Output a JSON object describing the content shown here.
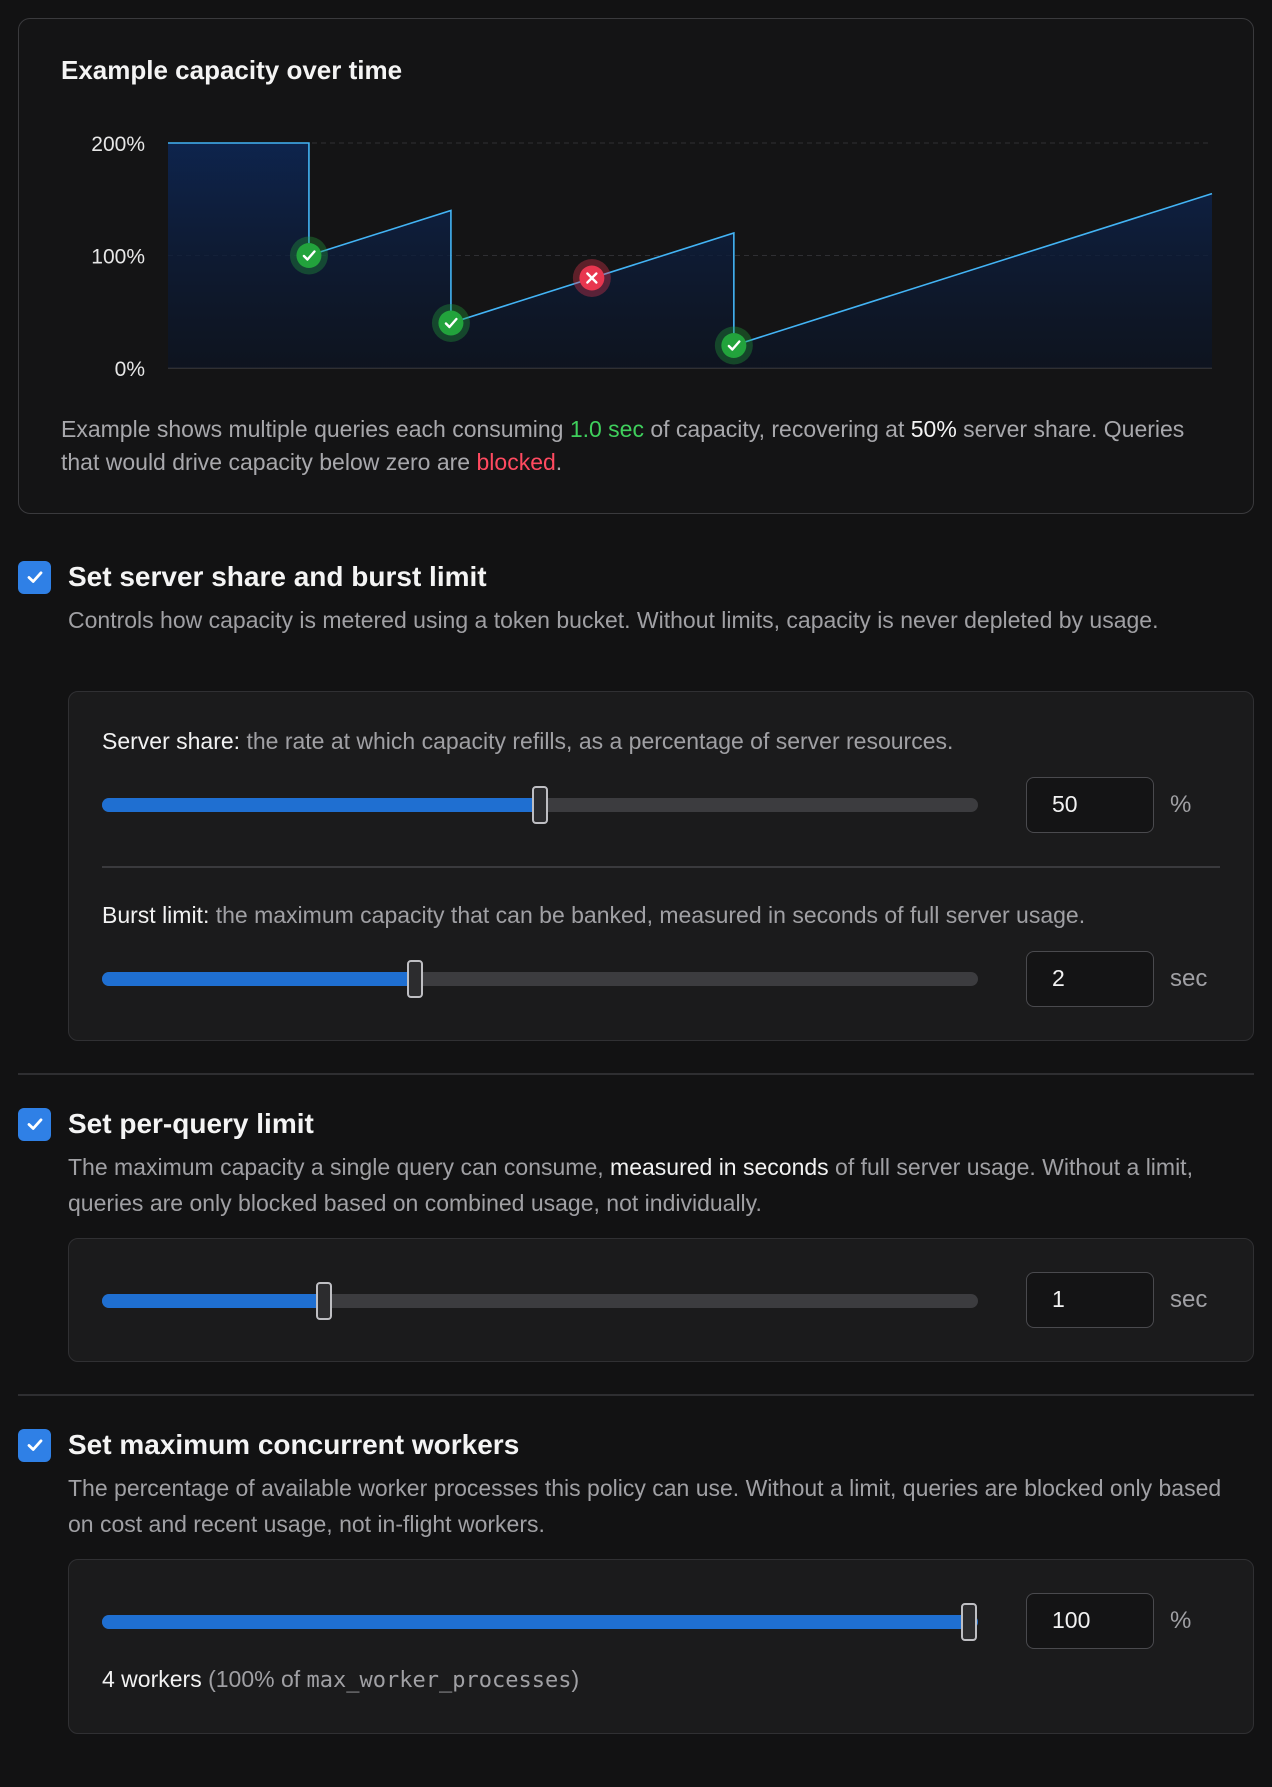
{
  "chart": {
    "title": "Example capacity over time",
    "y_ticks": [
      "200%",
      "100%",
      "0%"
    ],
    "caption": {
      "p1": "Example shows multiple queries each consuming ",
      "hl_cost": "1.0 sec",
      "p2": " of capacity, recovering at ",
      "hl_share": "50%",
      "p3": " server share. Queries that would drive capacity below zero are ",
      "hl_blocked": "blocked",
      "p4": "."
    },
    "colors": {
      "line": "#43b4f5",
      "ok": "#22a33c",
      "blocked": "#e8364f"
    }
  },
  "chart_data": {
    "type": "area",
    "title": "Example capacity over time",
    "xlabel": "",
    "ylabel": "",
    "y_tick_labels": [
      "0%",
      "100%",
      "200%"
    ],
    "ylim": [
      0,
      200
    ],
    "grid": true,
    "series": [
      {
        "values_x": [
          0,
          1.35,
          1.35,
          2.71,
          2.71,
          5.42,
          5.42,
          10
        ],
        "values_y": [
          200,
          200,
          100,
          140,
          40,
          120,
          20,
          155
        ]
      }
    ],
    "events": [
      {
        "x": 1.35,
        "y": 100,
        "status": "allowed"
      },
      {
        "x": 2.71,
        "y": 40,
        "status": "allowed"
      },
      {
        "x": 4.06,
        "y": 80,
        "status": "blocked"
      },
      {
        "x": 5.42,
        "y": 20,
        "status": "allowed"
      }
    ]
  },
  "share_burst": {
    "title": "Set server share and burst limit",
    "checked": true,
    "description": "Controls how capacity is metered using a token bucket. Without limits, capacity is never depleted by usage.",
    "server_share": {
      "label": "Server share:",
      "help": " the rate at which capacity refills, as a percentage of server resources.",
      "value": "50",
      "unit": "%",
      "fraction": 0.5
    },
    "burst_limit": {
      "label": "Burst limit:",
      "help": " the maximum capacity that can be banked, measured in seconds of full server usage.",
      "value": "2",
      "unit": "sec",
      "fraction": 0.357
    }
  },
  "per_query": {
    "title": "Set per-query limit",
    "checked": true,
    "desc_p1": "The maximum capacity a single query can consume, ",
    "desc_hl": "measured in seconds",
    "desc_p2": " of full server usage. Without a limit, queries are only blocked based on combined usage, not individually.",
    "value": "1",
    "unit": "sec",
    "fraction": 0.253
  },
  "workers": {
    "title": "Set maximum concurrent workers",
    "checked": true,
    "description": "The percentage of available worker processes this policy can use. Without a limit, queries are blocked only based on cost and recent usage, not in-flight workers.",
    "value": "100",
    "unit": "%",
    "fraction": 1.0,
    "note_count": "4 workers",
    "note_p1": " (100% of ",
    "note_code": "max_worker_processes",
    "note_p2": ")"
  }
}
